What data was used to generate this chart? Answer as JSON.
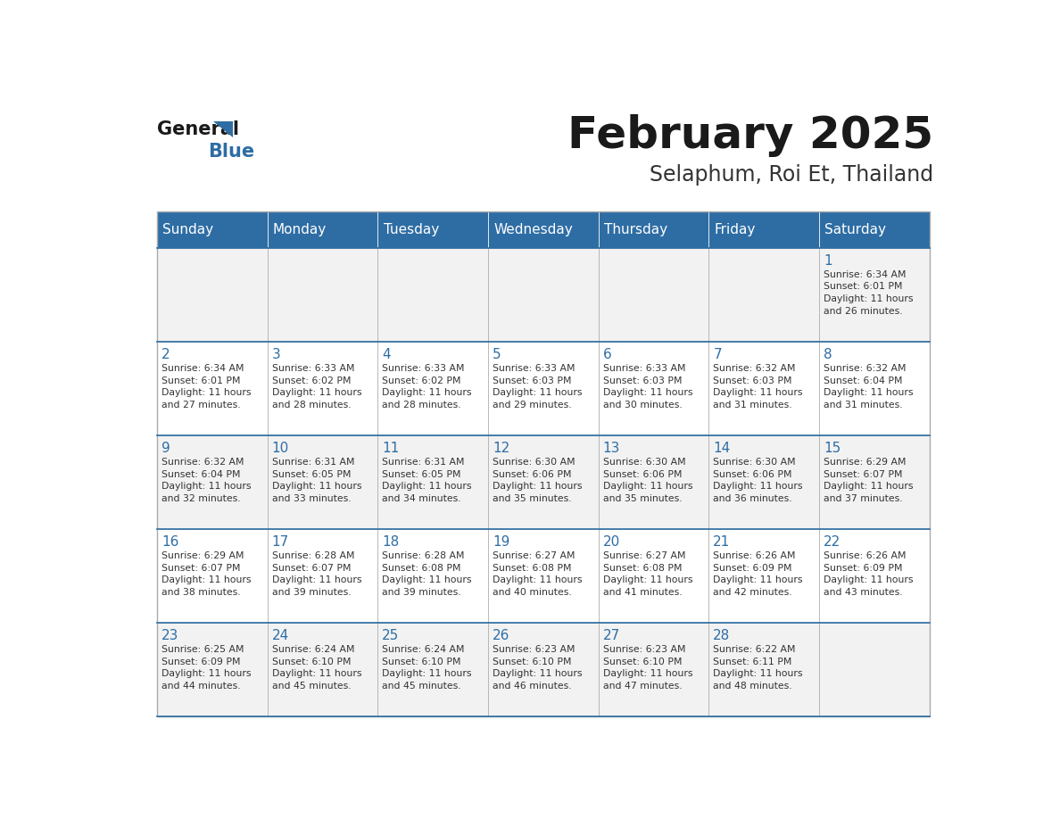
{
  "title": "February 2025",
  "subtitle": "Selaphum, Roi Et, Thailand",
  "header_color": "#2E6DA4",
  "header_text_color": "#FFFFFF",
  "cell_bg_color": "#FFFFFF",
  "alt_cell_bg_color": "#F2F2F2",
  "day_number_color": "#2E6DA4",
  "text_color": "#333333",
  "border_color": "#AAAAAA",
  "days_of_week": [
    "Sunday",
    "Monday",
    "Tuesday",
    "Wednesday",
    "Thursday",
    "Friday",
    "Saturday"
  ],
  "calendar_data": [
    [
      {
        "day": null,
        "info": null
      },
      {
        "day": null,
        "info": null
      },
      {
        "day": null,
        "info": null
      },
      {
        "day": null,
        "info": null
      },
      {
        "day": null,
        "info": null
      },
      {
        "day": null,
        "info": null
      },
      {
        "day": 1,
        "info": "Sunrise: 6:34 AM\nSunset: 6:01 PM\nDaylight: 11 hours\nand 26 minutes."
      }
    ],
    [
      {
        "day": 2,
        "info": "Sunrise: 6:34 AM\nSunset: 6:01 PM\nDaylight: 11 hours\nand 27 minutes."
      },
      {
        "day": 3,
        "info": "Sunrise: 6:33 AM\nSunset: 6:02 PM\nDaylight: 11 hours\nand 28 minutes."
      },
      {
        "day": 4,
        "info": "Sunrise: 6:33 AM\nSunset: 6:02 PM\nDaylight: 11 hours\nand 28 minutes."
      },
      {
        "day": 5,
        "info": "Sunrise: 6:33 AM\nSunset: 6:03 PM\nDaylight: 11 hours\nand 29 minutes."
      },
      {
        "day": 6,
        "info": "Sunrise: 6:33 AM\nSunset: 6:03 PM\nDaylight: 11 hours\nand 30 minutes."
      },
      {
        "day": 7,
        "info": "Sunrise: 6:32 AM\nSunset: 6:03 PM\nDaylight: 11 hours\nand 31 minutes."
      },
      {
        "day": 8,
        "info": "Sunrise: 6:32 AM\nSunset: 6:04 PM\nDaylight: 11 hours\nand 31 minutes."
      }
    ],
    [
      {
        "day": 9,
        "info": "Sunrise: 6:32 AM\nSunset: 6:04 PM\nDaylight: 11 hours\nand 32 minutes."
      },
      {
        "day": 10,
        "info": "Sunrise: 6:31 AM\nSunset: 6:05 PM\nDaylight: 11 hours\nand 33 minutes."
      },
      {
        "day": 11,
        "info": "Sunrise: 6:31 AM\nSunset: 6:05 PM\nDaylight: 11 hours\nand 34 minutes."
      },
      {
        "day": 12,
        "info": "Sunrise: 6:30 AM\nSunset: 6:06 PM\nDaylight: 11 hours\nand 35 minutes."
      },
      {
        "day": 13,
        "info": "Sunrise: 6:30 AM\nSunset: 6:06 PM\nDaylight: 11 hours\nand 35 minutes."
      },
      {
        "day": 14,
        "info": "Sunrise: 6:30 AM\nSunset: 6:06 PM\nDaylight: 11 hours\nand 36 minutes."
      },
      {
        "day": 15,
        "info": "Sunrise: 6:29 AM\nSunset: 6:07 PM\nDaylight: 11 hours\nand 37 minutes."
      }
    ],
    [
      {
        "day": 16,
        "info": "Sunrise: 6:29 AM\nSunset: 6:07 PM\nDaylight: 11 hours\nand 38 minutes."
      },
      {
        "day": 17,
        "info": "Sunrise: 6:28 AM\nSunset: 6:07 PM\nDaylight: 11 hours\nand 39 minutes."
      },
      {
        "day": 18,
        "info": "Sunrise: 6:28 AM\nSunset: 6:08 PM\nDaylight: 11 hours\nand 39 minutes."
      },
      {
        "day": 19,
        "info": "Sunrise: 6:27 AM\nSunset: 6:08 PM\nDaylight: 11 hours\nand 40 minutes."
      },
      {
        "day": 20,
        "info": "Sunrise: 6:27 AM\nSunset: 6:08 PM\nDaylight: 11 hours\nand 41 minutes."
      },
      {
        "day": 21,
        "info": "Sunrise: 6:26 AM\nSunset: 6:09 PM\nDaylight: 11 hours\nand 42 minutes."
      },
      {
        "day": 22,
        "info": "Sunrise: 6:26 AM\nSunset: 6:09 PM\nDaylight: 11 hours\nand 43 minutes."
      }
    ],
    [
      {
        "day": 23,
        "info": "Sunrise: 6:25 AM\nSunset: 6:09 PM\nDaylight: 11 hours\nand 44 minutes."
      },
      {
        "day": 24,
        "info": "Sunrise: 6:24 AM\nSunset: 6:10 PM\nDaylight: 11 hours\nand 45 minutes."
      },
      {
        "day": 25,
        "info": "Sunrise: 6:24 AM\nSunset: 6:10 PM\nDaylight: 11 hours\nand 45 minutes."
      },
      {
        "day": 26,
        "info": "Sunrise: 6:23 AM\nSunset: 6:10 PM\nDaylight: 11 hours\nand 46 minutes."
      },
      {
        "day": 27,
        "info": "Sunrise: 6:23 AM\nSunset: 6:10 PM\nDaylight: 11 hours\nand 47 minutes."
      },
      {
        "day": 28,
        "info": "Sunrise: 6:22 AM\nSunset: 6:11 PM\nDaylight: 11 hours\nand 48 minutes."
      },
      {
        "day": null,
        "info": null
      }
    ]
  ]
}
